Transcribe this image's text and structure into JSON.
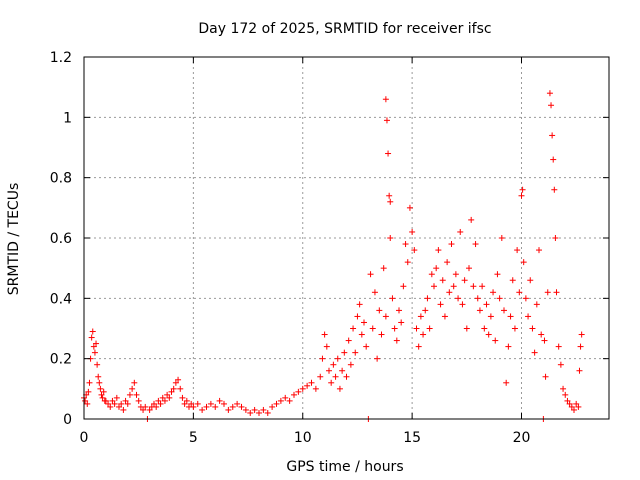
{
  "chart_data": {
    "type": "scatter",
    "title": "Day 172 of 2025, SRMTID for receiver ifsc",
    "xlabel": "GPS time / hours",
    "ylabel": "SRMTID / TECUs",
    "xlim": [
      0,
      24
    ],
    "ylim": [
      0,
      1.2
    ],
    "xticks": [
      0,
      5,
      10,
      15,
      20
    ],
    "xtick_labels": [
      "0",
      "5",
      "10",
      "15",
      "20"
    ],
    "yticks": [
      0,
      0.2,
      0.4,
      0.6,
      0.8,
      1.0,
      1.2
    ],
    "ytick_labels": [
      "0",
      "0.2",
      "0.4",
      "0.6",
      "0.8",
      "1",
      "1.2"
    ],
    "grid": true,
    "marker": "plus",
    "color": "#ff0000",
    "series": [
      {
        "name": "ifsc",
        "points": [
          [
            0.0,
            0.07
          ],
          [
            0.05,
            0.06
          ],
          [
            0.1,
            0.08
          ],
          [
            0.15,
            0.05
          ],
          [
            0.2,
            0.09
          ],
          [
            0.25,
            0.12
          ],
          [
            0.3,
            0.2
          ],
          [
            0.35,
            0.27
          ],
          [
            0.4,
            0.29
          ],
          [
            0.45,
            0.24
          ],
          [
            0.5,
            0.22
          ],
          [
            0.55,
            0.25
          ],
          [
            0.6,
            0.18
          ],
          [
            0.65,
            0.14
          ],
          [
            0.7,
            0.12
          ],
          [
            0.75,
            0.1
          ],
          [
            0.8,
            0.08
          ],
          [
            0.85,
            0.07
          ],
          [
            0.9,
            0.09
          ],
          [
            0.95,
            0.06
          ],
          [
            1.0,
            0.06
          ],
          [
            1.1,
            0.05
          ],
          [
            1.2,
            0.04
          ],
          [
            1.3,
            0.06
          ],
          [
            1.4,
            0.05
          ],
          [
            1.5,
            0.07
          ],
          [
            1.6,
            0.04
          ],
          [
            1.7,
            0.05
          ],
          [
            1.8,
            0.03
          ],
          [
            1.9,
            0.06
          ],
          [
            2.0,
            0.05
          ],
          [
            2.1,
            0.08
          ],
          [
            2.2,
            0.1
          ],
          [
            2.3,
            0.12
          ],
          [
            2.4,
            0.08
          ],
          [
            2.5,
            0.06
          ],
          [
            2.6,
            0.04
          ],
          [
            2.7,
            0.03
          ],
          [
            2.8,
            0.04
          ],
          [
            2.9,
            0.0
          ],
          [
            3.0,
            0.03
          ],
          [
            3.1,
            0.04
          ],
          [
            3.2,
            0.05
          ],
          [
            3.3,
            0.04
          ],
          [
            3.4,
            0.06
          ],
          [
            3.5,
            0.05
          ],
          [
            3.6,
            0.07
          ],
          [
            3.7,
            0.06
          ],
          [
            3.8,
            0.08
          ],
          [
            3.9,
            0.07
          ],
          [
            4.0,
            0.09
          ],
          [
            4.1,
            0.1
          ],
          [
            4.2,
            0.12
          ],
          [
            4.3,
            0.13
          ],
          [
            4.4,
            0.1
          ],
          [
            4.5,
            0.07
          ],
          [
            4.6,
            0.05
          ],
          [
            4.7,
            0.06
          ],
          [
            4.8,
            0.04
          ],
          [
            4.9,
            0.05
          ],
          [
            5.0,
            0.04
          ],
          [
            5.2,
            0.05
          ],
          [
            5.4,
            0.03
          ],
          [
            5.6,
            0.04
          ],
          [
            5.8,
            0.05
          ],
          [
            6.0,
            0.04
          ],
          [
            6.2,
            0.06
          ],
          [
            6.4,
            0.05
          ],
          [
            6.6,
            0.03
          ],
          [
            6.8,
            0.04
          ],
          [
            7.0,
            0.05
          ],
          [
            7.2,
            0.04
          ],
          [
            7.4,
            0.03
          ],
          [
            7.6,
            0.02
          ],
          [
            7.8,
            0.03
          ],
          [
            8.0,
            0.02
          ],
          [
            8.2,
            0.03
          ],
          [
            8.4,
            0.02
          ],
          [
            8.6,
            0.04
          ],
          [
            8.8,
            0.05
          ],
          [
            9.0,
            0.06
          ],
          [
            9.2,
            0.07
          ],
          [
            9.4,
            0.06
          ],
          [
            9.6,
            0.08
          ],
          [
            9.8,
            0.09
          ],
          [
            10.0,
            0.1
          ],
          [
            10.2,
            0.11
          ],
          [
            10.4,
            0.12
          ],
          [
            10.6,
            0.1
          ],
          [
            10.8,
            0.14
          ],
          [
            10.9,
            0.2
          ],
          [
            11.0,
            0.28
          ],
          [
            11.1,
            0.24
          ],
          [
            11.2,
            0.16
          ],
          [
            11.3,
            0.12
          ],
          [
            11.4,
            0.18
          ],
          [
            11.5,
            0.14
          ],
          [
            11.6,
            0.2
          ],
          [
            11.7,
            0.1
          ],
          [
            11.8,
            0.16
          ],
          [
            11.9,
            0.22
          ],
          [
            12.0,
            0.14
          ],
          [
            12.1,
            0.26
          ],
          [
            12.2,
            0.18
          ],
          [
            12.3,
            0.3
          ],
          [
            12.4,
            0.22
          ],
          [
            12.5,
            0.34
          ],
          [
            12.6,
            0.38
          ],
          [
            12.7,
            0.28
          ],
          [
            12.8,
            0.32
          ],
          [
            12.9,
            0.24
          ],
          [
            13.0,
            0.0
          ],
          [
            13.1,
            0.48
          ],
          [
            13.2,
            0.3
          ],
          [
            13.3,
            0.42
          ],
          [
            13.4,
            0.2
          ],
          [
            13.5,
            0.36
          ],
          [
            13.6,
            0.28
          ],
          [
            13.7,
            0.5
          ],
          [
            13.8,
            0.34
          ],
          [
            13.8,
            1.06
          ],
          [
            13.85,
            0.99
          ],
          [
            13.9,
            0.88
          ],
          [
            13.95,
            0.74
          ],
          [
            14.0,
            0.72
          ],
          [
            14.0,
            0.6
          ],
          [
            14.1,
            0.4
          ],
          [
            14.2,
            0.3
          ],
          [
            14.3,
            0.26
          ],
          [
            14.4,
            0.36
          ],
          [
            14.5,
            0.32
          ],
          [
            14.6,
            0.44
          ],
          [
            14.7,
            0.58
          ],
          [
            14.8,
            0.52
          ],
          [
            14.9,
            0.7
          ],
          [
            15.0,
            0.62
          ],
          [
            15.1,
            0.56
          ],
          [
            15.2,
            0.3
          ],
          [
            15.3,
            0.24
          ],
          [
            15.4,
            0.34
          ],
          [
            15.5,
            0.28
          ],
          [
            15.6,
            0.36
          ],
          [
            15.7,
            0.4
          ],
          [
            15.8,
            0.3
          ],
          [
            15.9,
            0.48
          ],
          [
            16.0,
            0.44
          ],
          [
            16.1,
            0.5
          ],
          [
            16.2,
            0.56
          ],
          [
            16.3,
            0.38
          ],
          [
            16.4,
            0.46
          ],
          [
            16.5,
            0.34
          ],
          [
            16.6,
            0.52
          ],
          [
            16.7,
            0.42
          ],
          [
            16.8,
            0.58
          ],
          [
            16.9,
            0.44
          ],
          [
            17.0,
            0.48
          ],
          [
            17.1,
            0.4
          ],
          [
            17.2,
            0.62
          ],
          [
            17.3,
            0.38
          ],
          [
            17.4,
            0.46
          ],
          [
            17.5,
            0.3
          ],
          [
            17.6,
            0.5
          ],
          [
            17.7,
            0.66
          ],
          [
            17.8,
            0.44
          ],
          [
            17.9,
            0.58
          ],
          [
            18.0,
            0.4
          ],
          [
            18.1,
            0.36
          ],
          [
            18.2,
            0.44
          ],
          [
            18.3,
            0.3
          ],
          [
            18.4,
            0.38
          ],
          [
            18.5,
            0.28
          ],
          [
            18.6,
            0.34
          ],
          [
            18.7,
            0.42
          ],
          [
            18.8,
            0.26
          ],
          [
            18.9,
            0.48
          ],
          [
            19.0,
            0.4
          ],
          [
            19.1,
            0.6
          ],
          [
            19.2,
            0.36
          ],
          [
            19.3,
            0.12
          ],
          [
            19.4,
            0.24
          ],
          [
            19.5,
            0.34
          ],
          [
            19.6,
            0.46
          ],
          [
            19.7,
            0.3
          ],
          [
            19.8,
            0.56
          ],
          [
            19.9,
            0.42
          ],
          [
            20.0,
            0.74
          ],
          [
            20.05,
            0.76
          ],
          [
            20.1,
            0.52
          ],
          [
            20.2,
            0.4
          ],
          [
            20.3,
            0.34
          ],
          [
            20.4,
            0.46
          ],
          [
            20.5,
            0.3
          ],
          [
            20.6,
            0.22
          ],
          [
            20.7,
            0.38
          ],
          [
            20.8,
            0.56
          ],
          [
            20.9,
            0.28
          ],
          [
            21.0,
            0.0
          ],
          [
            21.05,
            0.26
          ],
          [
            21.1,
            0.14
          ],
          [
            21.2,
            0.42
          ],
          [
            21.3,
            1.08
          ],
          [
            21.35,
            1.04
          ],
          [
            21.4,
            0.94
          ],
          [
            21.45,
            0.86
          ],
          [
            21.5,
            0.76
          ],
          [
            21.55,
            0.6
          ],
          [
            21.6,
            0.42
          ],
          [
            21.7,
            0.24
          ],
          [
            21.8,
            0.18
          ],
          [
            21.9,
            0.1
          ],
          [
            22.0,
            0.08
          ],
          [
            22.1,
            0.06
          ],
          [
            22.2,
            0.05
          ],
          [
            22.3,
            0.04
          ],
          [
            22.4,
            0.03
          ],
          [
            22.5,
            0.05
          ],
          [
            22.6,
            0.04
          ],
          [
            22.65,
            0.16
          ],
          [
            22.7,
            0.24
          ],
          [
            22.75,
            0.28
          ]
        ]
      }
    ]
  }
}
